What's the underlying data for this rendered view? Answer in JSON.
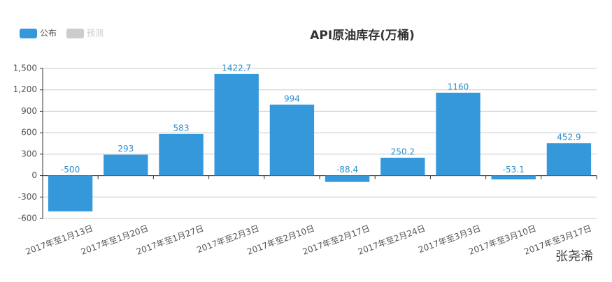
{
  "chart_data": {
    "type": "bar",
    "title": "API原油库存(万桶)",
    "categories": [
      "2017年至1月13日",
      "2017年至1月20日",
      "2017年至1月27日",
      "2017年至2月3日",
      "2017年至2月10日",
      "2017年至2月17日",
      "2017年至2月24日",
      "2017年至3月3日",
      "2017年至3月10日",
      "2017年至3月17日"
    ],
    "series": [
      {
        "name": "公布",
        "color": "#3498db",
        "values": [
          -500,
          293,
          583,
          1422.7,
          994,
          -88.4,
          250.2,
          1160,
          -53.1,
          452.9
        ]
      },
      {
        "name": "预测",
        "color": "#cccccc",
        "values": [
          null,
          null,
          null,
          null,
          null,
          null,
          null,
          null,
          null,
          null
        ]
      }
    ],
    "ylim": [
      -600,
      1500
    ],
    "yticks": [
      -600,
      -300,
      0,
      300,
      600,
      900,
      {
        "value": 1200,
        "label": "1,200"
      },
      {
        "value": 1500,
        "label": "1,500"
      }
    ],
    "grid": true,
    "legend": "top-left",
    "watermark": "张尧浠"
  }
}
